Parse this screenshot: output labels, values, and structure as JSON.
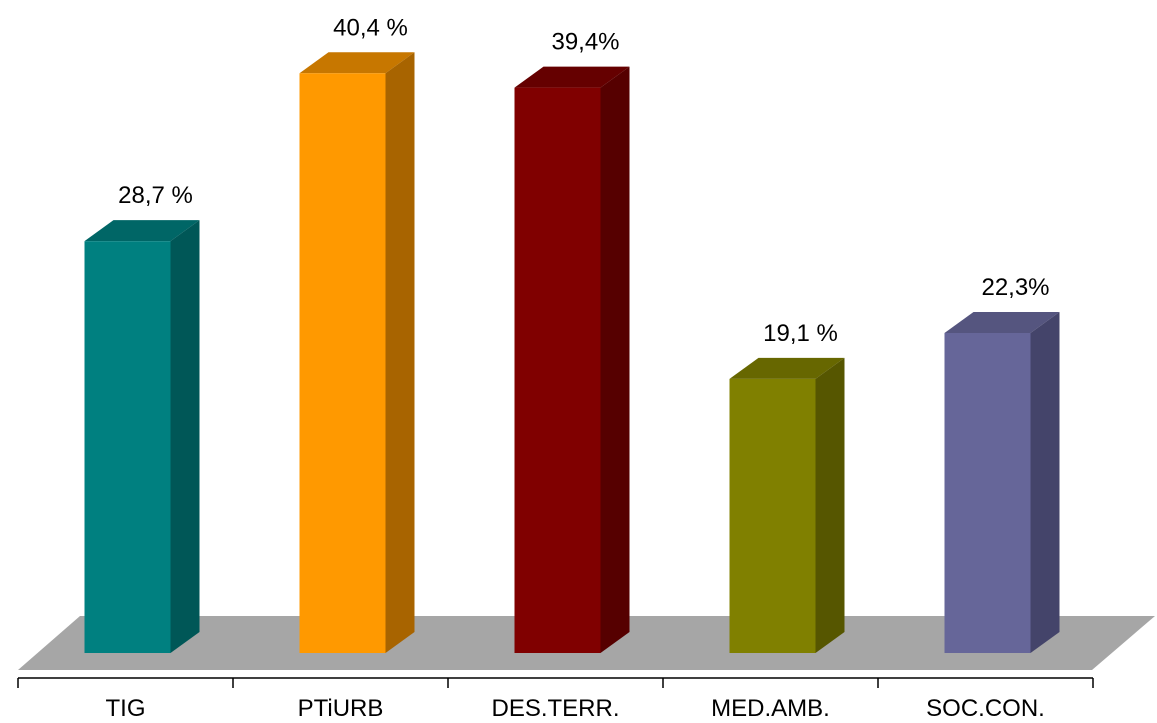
{
  "chart_data": {
    "type": "bar",
    "title": "",
    "xlabel": "",
    "ylabel": "",
    "categories": [
      "TIG",
      "PTiURB",
      "DES.TERR.",
      "MED.AMB.",
      "SOC.CON."
    ],
    "values": [
      28.7,
      40.4,
      39.4,
      19.1,
      22.3
    ],
    "value_labels": [
      "28,7 %",
      "40,4 %",
      "39,4%",
      "19,1 %",
      "22,3%"
    ],
    "ylim": [
      0,
      45
    ],
    "grid": false,
    "legend": "none",
    "colors": [
      {
        "front": "#008080",
        "side": "#005757",
        "top": "#006666"
      },
      {
        "front": "#FF9900",
        "side": "#A86400",
        "top": "#C77700"
      },
      {
        "front": "#800000",
        "side": "#560000",
        "top": "#650000"
      },
      {
        "front": "#808000",
        "side": "#565600",
        "top": "#676700"
      },
      {
        "front": "#666699",
        "side": "#44446A",
        "top": "#55557F"
      }
    ],
    "floor_color": "#A6A6A6"
  }
}
